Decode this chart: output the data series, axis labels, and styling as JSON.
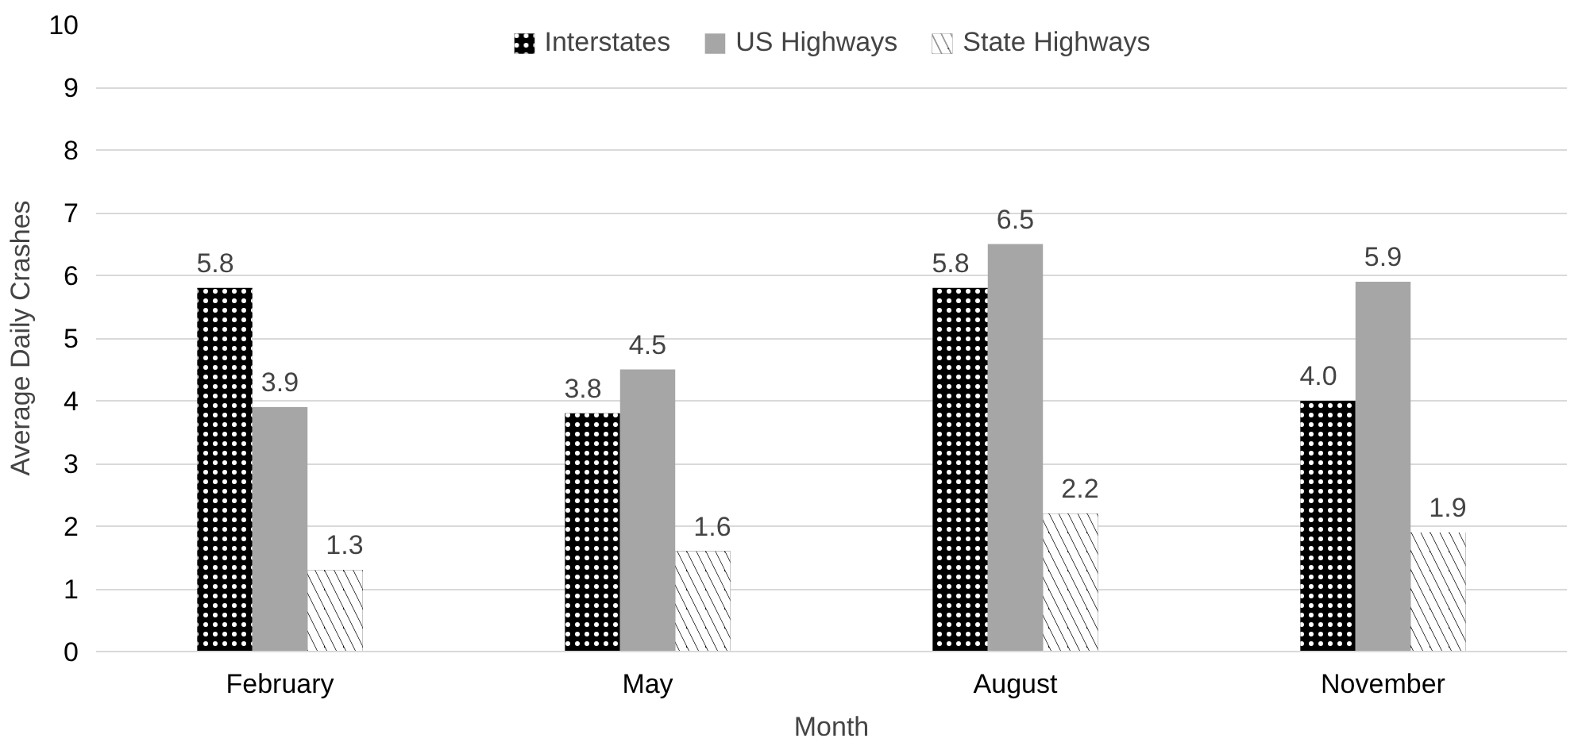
{
  "chart_data": {
    "type": "bar",
    "xlabel": "Month",
    "ylabel": "Average Daily Crashes",
    "categories": [
      "February",
      "May",
      "August",
      "November"
    ],
    "series": [
      {
        "name": "Interstates",
        "color": "#000000",
        "values": [
          5.8,
          3.8,
          5.8,
          4.0
        ],
        "value_labels": [
          "5.8",
          "3.8",
          "5.8",
          "4.0"
        ]
      },
      {
        "name": "US Highways",
        "color": "#a6a6a6",
        "values": [
          3.9,
          4.5,
          6.5,
          5.9
        ],
        "value_labels": [
          "3.9",
          "4.5",
          "6.5",
          "5.9"
        ]
      },
      {
        "name": "State Highways",
        "color": "#000000",
        "values": [
          1.3,
          1.6,
          2.2,
          1.9
        ],
        "value_labels": [
          "1.3",
          "1.6",
          "2.2",
          "1.9"
        ]
      }
    ],
    "ylim": [
      0,
      10
    ],
    "yticks": [
      0,
      1,
      2,
      3,
      4,
      5,
      6,
      7,
      8,
      9,
      10
    ],
    "grid": "y",
    "legend": "top"
  }
}
